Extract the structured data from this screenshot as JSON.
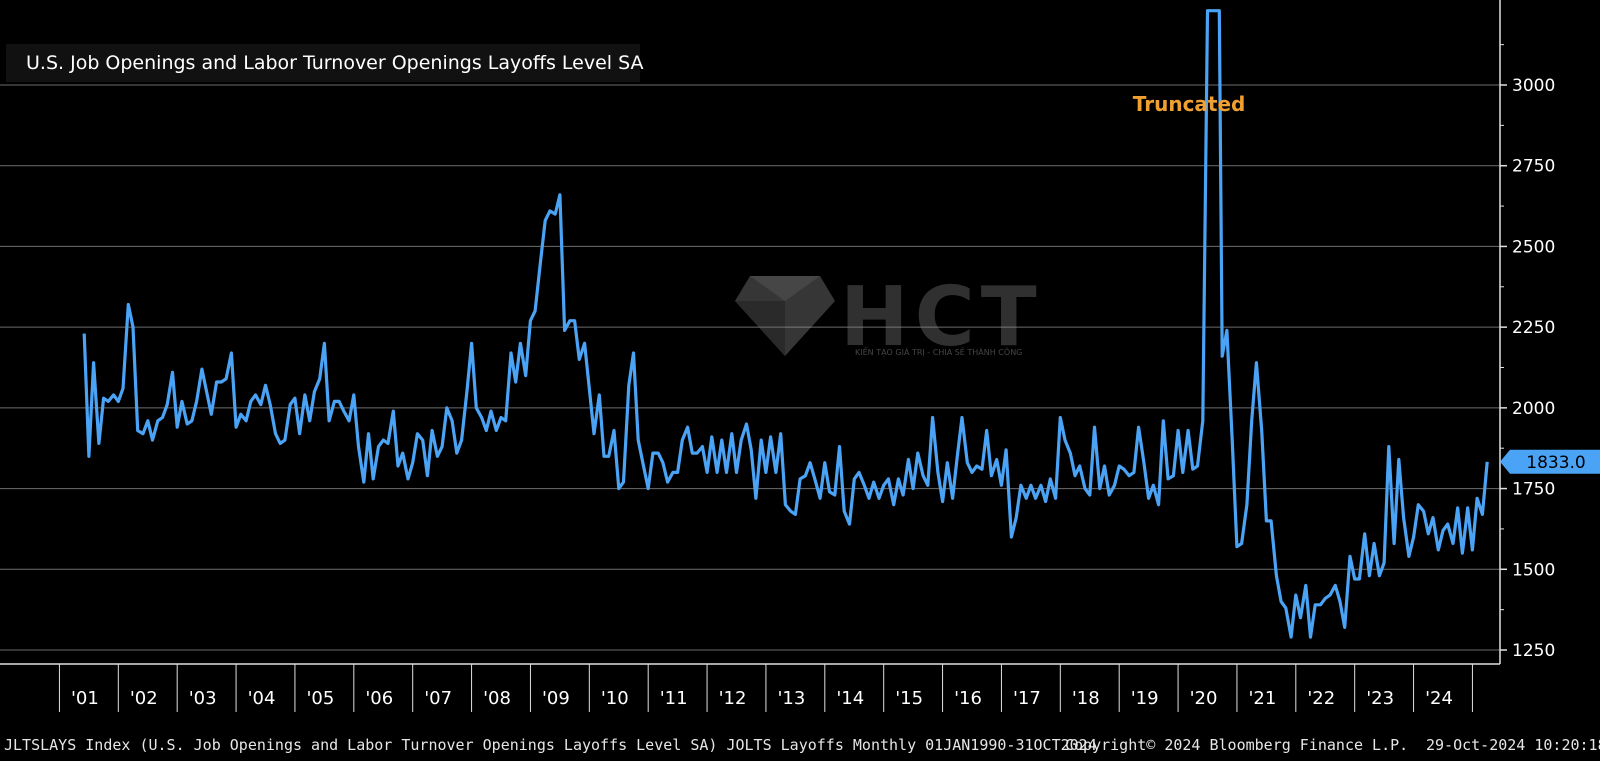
{
  "legend": {
    "label": "U.S. Job Openings and Labor Turnover Openings Layoffs Level SA",
    "color": "#4aa3f5"
  },
  "annotation": {
    "text": "Truncated",
    "color": "#f0a030",
    "x": 2019.75,
    "y": 3000
  },
  "last_value": {
    "label": "1833.0",
    "value": 1833.0
  },
  "footer": {
    "left": "JLTSLAYS Index (U.S. Job Openings and Labor Turnover Openings Layoffs Level SA) JOLTS Layoffs  Monthly 01JAN1990-31OCT2024",
    "center": "Copyright© 2024 Bloomberg Finance L.P.",
    "right": "29-Oct-2024 10:20:18"
  },
  "watermark": {
    "text": "HCT",
    "subtitle": "KIẾN TẠO GIÁ TRỊ - CHIA SẺ THÀNH CÔNG"
  },
  "chart_data": {
    "type": "line",
    "title": "",
    "xlabel": "",
    "ylabel": "",
    "ylim": [
      1200,
      3230
    ],
    "xlim": [
      2000.92,
      2025.05
    ],
    "y_ticks": [
      1250,
      1500,
      1750,
      2000,
      2250,
      2500,
      2750,
      3000
    ],
    "x_tick_labels": [
      "'01",
      "'02",
      "'03",
      "'04",
      "'05",
      "'06",
      "'07",
      "'08",
      "'09",
      "'10",
      "'11",
      "'12",
      "'13",
      "'14",
      "'15",
      "'16",
      "'17",
      "'18",
      "'19",
      "'20",
      "'21",
      "'22",
      "'23",
      "'24"
    ],
    "x_tick_years": [
      2001,
      2002,
      2003,
      2004,
      2005,
      2006,
      2007,
      2008,
      2009,
      2010,
      2011,
      2012,
      2013,
      2014,
      2015,
      2016,
      2017,
      2018,
      2019,
      2020,
      2021,
      2022,
      2023,
      2024
    ],
    "grid": true,
    "series": [
      {
        "name": "U.S. Job Openings and Labor Turnover Openings Layoffs Level SA",
        "color": "#4aa3f5",
        "points": [
          [
            2000.92,
            2230
          ],
          [
            2001.0,
            1850
          ],
          [
            2001.08,
            2140
          ],
          [
            2001.17,
            1890
          ],
          [
            2001.25,
            2030
          ],
          [
            2001.33,
            2020
          ],
          [
            2001.42,
            2040
          ],
          [
            2001.5,
            2020
          ],
          [
            2001.58,
            2060
          ],
          [
            2001.67,
            2320
          ],
          [
            2001.75,
            2250
          ],
          [
            2001.83,
            1930
          ],
          [
            2001.92,
            1920
          ],
          [
            2002.0,
            1960
          ],
          [
            2002.08,
            1900
          ],
          [
            2002.17,
            1960
          ],
          [
            2002.25,
            1970
          ],
          [
            2002.33,
            2010
          ],
          [
            2002.42,
            2110
          ],
          [
            2002.5,
            1940
          ],
          [
            2002.58,
            2020
          ],
          [
            2002.67,
            1950
          ],
          [
            2002.75,
            1960
          ],
          [
            2002.83,
            2020
          ],
          [
            2002.92,
            2120
          ],
          [
            2003.0,
            2050
          ],
          [
            2003.08,
            1980
          ],
          [
            2003.17,
            2080
          ],
          [
            2003.25,
            2080
          ],
          [
            2003.33,
            2090
          ],
          [
            2003.42,
            2170
          ],
          [
            2003.5,
            1940
          ],
          [
            2003.58,
            1980
          ],
          [
            2003.67,
            1960
          ],
          [
            2003.75,
            2020
          ],
          [
            2003.83,
            2040
          ],
          [
            2003.92,
            2010
          ],
          [
            2004.0,
            2070
          ],
          [
            2004.08,
            2010
          ],
          [
            2004.17,
            1920
          ],
          [
            2004.25,
            1890
          ],
          [
            2004.33,
            1900
          ],
          [
            2004.42,
            2010
          ],
          [
            2004.5,
            2030
          ],
          [
            2004.58,
            1920
          ],
          [
            2004.67,
            2040
          ],
          [
            2004.75,
            1960
          ],
          [
            2004.83,
            2050
          ],
          [
            2004.92,
            2090
          ],
          [
            2005.0,
            2200
          ],
          [
            2005.08,
            1960
          ],
          [
            2005.17,
            2020
          ],
          [
            2005.25,
            2020
          ],
          [
            2005.33,
            1990
          ],
          [
            2005.42,
            1960
          ],
          [
            2005.5,
            2040
          ],
          [
            2005.58,
            1880
          ],
          [
            2005.67,
            1770
          ],
          [
            2005.75,
            1920
          ],
          [
            2005.83,
            1780
          ],
          [
            2005.92,
            1880
          ],
          [
            2006.0,
            1900
          ],
          [
            2006.08,
            1890
          ],
          [
            2006.17,
            1990
          ],
          [
            2006.25,
            1820
          ],
          [
            2006.33,
            1860
          ],
          [
            2006.42,
            1780
          ],
          [
            2006.5,
            1830
          ],
          [
            2006.58,
            1920
          ],
          [
            2006.67,
            1900
          ],
          [
            2006.75,
            1790
          ],
          [
            2006.83,
            1930
          ],
          [
            2006.92,
            1850
          ],
          [
            2007.0,
            1880
          ],
          [
            2007.08,
            2000
          ],
          [
            2007.17,
            1960
          ],
          [
            2007.25,
            1860
          ],
          [
            2007.33,
            1900
          ],
          [
            2007.42,
            2050
          ],
          [
            2007.5,
            2200
          ],
          [
            2007.58,
            2000
          ],
          [
            2007.67,
            1970
          ],
          [
            2007.75,
            1930
          ],
          [
            2007.83,
            1990
          ],
          [
            2007.92,
            1930
          ],
          [
            2008.0,
            1970
          ],
          [
            2008.08,
            1960
          ],
          [
            2008.17,
            2170
          ],
          [
            2008.25,
            2080
          ],
          [
            2008.33,
            2200
          ],
          [
            2008.42,
            2100
          ],
          [
            2008.5,
            2270
          ],
          [
            2008.58,
            2300
          ],
          [
            2008.67,
            2450
          ],
          [
            2008.75,
            2580
          ],
          [
            2008.83,
            2610
          ],
          [
            2008.92,
            2600
          ],
          [
            2009.0,
            2660
          ],
          [
            2009.08,
            2240
          ],
          [
            2009.17,
            2270
          ],
          [
            2009.25,
            2270
          ],
          [
            2009.33,
            2150
          ],
          [
            2009.42,
            2200
          ],
          [
            2009.5,
            2060
          ],
          [
            2009.58,
            1920
          ],
          [
            2009.67,
            2040
          ],
          [
            2009.75,
            1850
          ],
          [
            2009.83,
            1850
          ],
          [
            2009.92,
            1930
          ],
          [
            2010.0,
            1750
          ],
          [
            2010.08,
            1770
          ],
          [
            2010.17,
            2070
          ],
          [
            2010.25,
            2170
          ],
          [
            2010.33,
            1900
          ],
          [
            2010.42,
            1820
          ],
          [
            2010.5,
            1750
          ],
          [
            2010.58,
            1860
          ],
          [
            2010.67,
            1860
          ],
          [
            2010.75,
            1830
          ],
          [
            2010.83,
            1770
          ],
          [
            2010.92,
            1800
          ],
          [
            2011.0,
            1800
          ],
          [
            2011.08,
            1900
          ],
          [
            2011.17,
            1940
          ],
          [
            2011.25,
            1860
          ],
          [
            2011.33,
            1860
          ],
          [
            2011.42,
            1880
          ],
          [
            2011.5,
            1800
          ],
          [
            2011.58,
            1910
          ],
          [
            2011.67,
            1800
          ],
          [
            2011.75,
            1900
          ],
          [
            2011.83,
            1800
          ],
          [
            2011.92,
            1920
          ],
          [
            2012.0,
            1800
          ],
          [
            2012.08,
            1900
          ],
          [
            2012.17,
            1950
          ],
          [
            2012.25,
            1870
          ],
          [
            2012.33,
            1720
          ],
          [
            2012.42,
            1900
          ],
          [
            2012.5,
            1800
          ],
          [
            2012.58,
            1910
          ],
          [
            2012.67,
            1800
          ],
          [
            2012.75,
            1920
          ],
          [
            2012.83,
            1700
          ],
          [
            2012.92,
            1680
          ],
          [
            2013.0,
            1670
          ],
          [
            2013.08,
            1780
          ],
          [
            2013.17,
            1790
          ],
          [
            2013.25,
            1830
          ],
          [
            2013.33,
            1780
          ],
          [
            2013.42,
            1720
          ],
          [
            2013.5,
            1830
          ],
          [
            2013.58,
            1740
          ],
          [
            2013.67,
            1730
          ],
          [
            2013.75,
            1880
          ],
          [
            2013.83,
            1680
          ],
          [
            2013.92,
            1640
          ],
          [
            2014.0,
            1780
          ],
          [
            2014.08,
            1800
          ],
          [
            2014.17,
            1760
          ],
          [
            2014.25,
            1720
          ],
          [
            2014.33,
            1770
          ],
          [
            2014.42,
            1720
          ],
          [
            2014.5,
            1760
          ],
          [
            2014.58,
            1780
          ],
          [
            2014.67,
            1700
          ],
          [
            2014.75,
            1780
          ],
          [
            2014.83,
            1730
          ],
          [
            2014.92,
            1840
          ],
          [
            2015.0,
            1750
          ],
          [
            2015.08,
            1860
          ],
          [
            2015.17,
            1790
          ],
          [
            2015.25,
            1760
          ],
          [
            2015.33,
            1970
          ],
          [
            2015.42,
            1800
          ],
          [
            2015.5,
            1710
          ],
          [
            2015.58,
            1830
          ],
          [
            2015.67,
            1720
          ],
          [
            2015.75,
            1850
          ],
          [
            2015.83,
            1970
          ],
          [
            2015.92,
            1830
          ],
          [
            2016.0,
            1800
          ],
          [
            2016.08,
            1820
          ],
          [
            2016.17,
            1810
          ],
          [
            2016.25,
            1930
          ],
          [
            2016.33,
            1790
          ],
          [
            2016.42,
            1840
          ],
          [
            2016.5,
            1760
          ],
          [
            2016.58,
            1870
          ],
          [
            2016.67,
            1600
          ],
          [
            2016.75,
            1660
          ],
          [
            2016.83,
            1760
          ],
          [
            2016.92,
            1720
          ],
          [
            2017.0,
            1760
          ],
          [
            2017.08,
            1720
          ],
          [
            2017.17,
            1760
          ],
          [
            2017.25,
            1710
          ],
          [
            2017.33,
            1780
          ],
          [
            2017.42,
            1720
          ],
          [
            2017.5,
            1970
          ],
          [
            2017.58,
            1900
          ],
          [
            2017.67,
            1860
          ],
          [
            2017.75,
            1790
          ],
          [
            2017.83,
            1820
          ],
          [
            2017.92,
            1750
          ],
          [
            2018.0,
            1730
          ],
          [
            2018.08,
            1940
          ],
          [
            2018.17,
            1750
          ],
          [
            2018.25,
            1820
          ],
          [
            2018.33,
            1730
          ],
          [
            2018.42,
            1760
          ],
          [
            2018.5,
            1820
          ],
          [
            2018.58,
            1810
          ],
          [
            2018.67,
            1790
          ],
          [
            2018.75,
            1800
          ],
          [
            2018.83,
            1940
          ],
          [
            2018.92,
            1830
          ],
          [
            2019.0,
            1720
          ],
          [
            2019.08,
            1760
          ],
          [
            2019.17,
            1700
          ],
          [
            2019.25,
            1960
          ],
          [
            2019.33,
            1780
          ],
          [
            2019.42,
            1790
          ],
          [
            2019.5,
            1930
          ],
          [
            2019.58,
            1800
          ],
          [
            2019.67,
            1930
          ],
          [
            2019.75,
            1810
          ],
          [
            2019.83,
            1820
          ],
          [
            2019.92,
            1960
          ],
          [
            2020.0,
            3230
          ],
          [
            2020.04,
            3230
          ],
          [
            2020.17,
            3230
          ],
          [
            2020.2,
            3230
          ],
          [
            2020.25,
            2160
          ],
          [
            2020.33,
            2240
          ],
          [
            2020.42,
            1900
          ],
          [
            2020.5,
            1570
          ],
          [
            2020.58,
            1580
          ],
          [
            2020.67,
            1700
          ],
          [
            2020.75,
            1960
          ],
          [
            2020.83,
            2140
          ],
          [
            2020.92,
            1930
          ],
          [
            2021.0,
            1650
          ],
          [
            2021.08,
            1650
          ],
          [
            2021.17,
            1480
          ],
          [
            2021.25,
            1400
          ],
          [
            2021.33,
            1380
          ],
          [
            2021.42,
            1290
          ],
          [
            2021.5,
            1420
          ],
          [
            2021.58,
            1350
          ],
          [
            2021.67,
            1450
          ],
          [
            2021.75,
            1290
          ],
          [
            2021.83,
            1390
          ],
          [
            2021.92,
            1390
          ],
          [
            2022.0,
            1410
          ],
          [
            2022.08,
            1420
          ],
          [
            2022.17,
            1450
          ],
          [
            2022.25,
            1400
          ],
          [
            2022.33,
            1320
          ],
          [
            2022.42,
            1540
          ],
          [
            2022.5,
            1470
          ],
          [
            2022.58,
            1470
          ],
          [
            2022.67,
            1610
          ],
          [
            2022.75,
            1480
          ],
          [
            2022.83,
            1580
          ],
          [
            2022.92,
            1480
          ],
          [
            2023.0,
            1520
          ],
          [
            2023.08,
            1880
          ],
          [
            2023.17,
            1580
          ],
          [
            2023.25,
            1840
          ],
          [
            2023.33,
            1660
          ],
          [
            2023.42,
            1540
          ],
          [
            2023.5,
            1600
          ],
          [
            2023.58,
            1700
          ],
          [
            2023.67,
            1680
          ],
          [
            2023.75,
            1610
          ],
          [
            2023.83,
            1660
          ],
          [
            2023.92,
            1560
          ],
          [
            2024.0,
            1620
          ],
          [
            2024.08,
            1640
          ],
          [
            2024.17,
            1580
          ],
          [
            2024.25,
            1690
          ],
          [
            2024.33,
            1550
          ],
          [
            2024.42,
            1690
          ],
          [
            2024.5,
            1560
          ],
          [
            2024.58,
            1720
          ],
          [
            2024.67,
            1670
          ],
          [
            2024.75,
            1833
          ]
        ]
      }
    ]
  }
}
